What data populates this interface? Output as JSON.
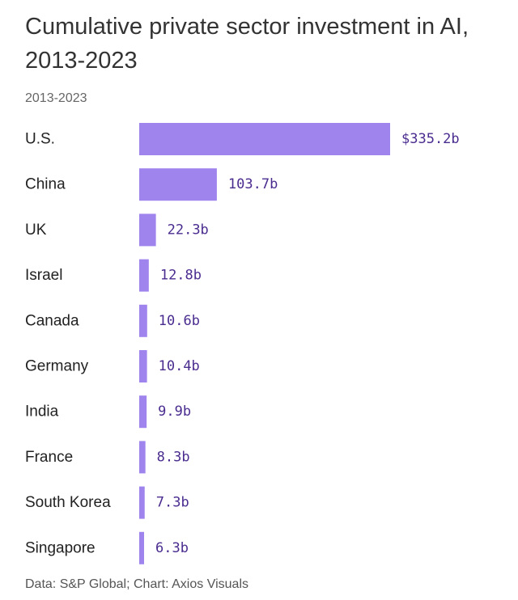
{
  "chart_data": {
    "type": "bar",
    "orientation": "horizontal",
    "title": "Cumulative private sector investment in AI, 2013-2023",
    "subtitle": "2013-2023",
    "categories": [
      "U.S.",
      "China",
      "UK",
      "Israel",
      "Canada",
      "Germany",
      "India",
      "France",
      "South Korea",
      "Singapore"
    ],
    "values": [
      335.2,
      103.7,
      22.3,
      12.8,
      10.6,
      10.4,
      9.9,
      8.3,
      7.3,
      6.3
    ],
    "value_labels": [
      "$335.2b",
      "103.7b",
      "22.3b",
      "12.8b",
      "10.6b",
      "10.4b",
      "9.9b",
      "8.3b",
      "7.3b",
      "6.3b"
    ],
    "unit": "billion USD",
    "xlim": [
      0,
      335.2
    ],
    "bar_color": "#a084ee",
    "label_color": "#4a2c8f",
    "source": "Data: S&P Global; Chart: Axios Visuals"
  }
}
